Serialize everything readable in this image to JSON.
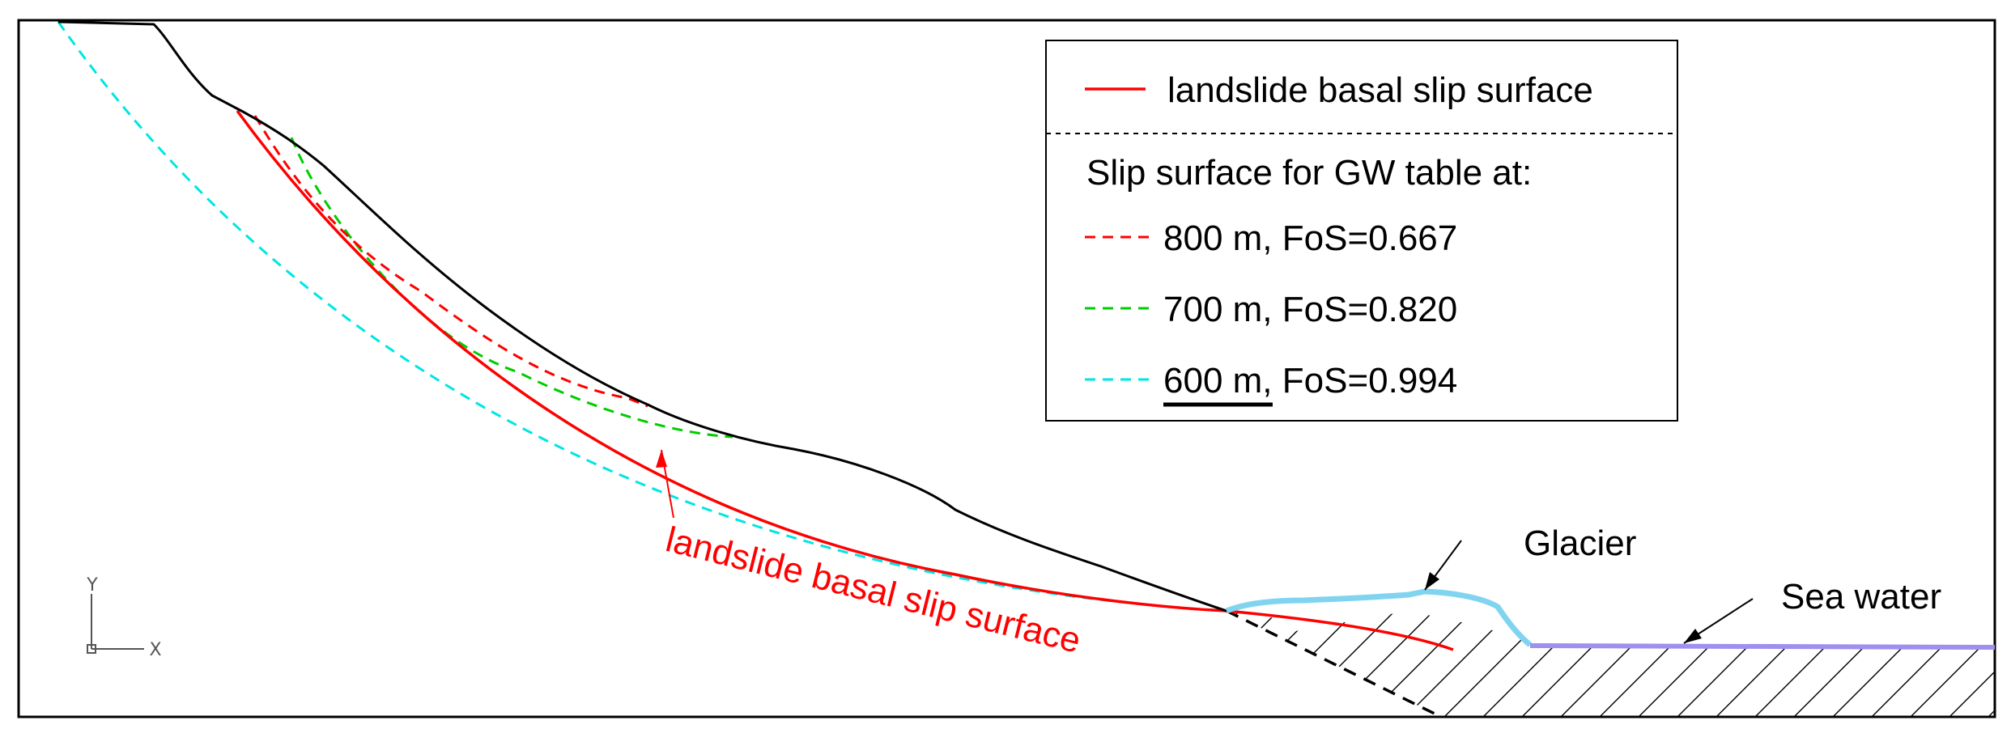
{
  "legend": {
    "main_entry": "landslide basal slip surface",
    "heading": "Slip surface for GW table at:",
    "entries": [
      {
        "depth": "800 m",
        "fos": ", FoS=0.667",
        "color": "#ff0000"
      },
      {
        "depth": "700 m",
        "fos": ", FoS=0.820",
        "color": "#00cc00"
      },
      {
        "depth": "600 m",
        "fos": ", FoS=0.994",
        "color": "#00e5e5"
      }
    ]
  },
  "labels": {
    "slip_surface": "landslide basal slip surface",
    "glacier": "Glacier",
    "sea_water": "Sea water"
  },
  "ucs_icon": {
    "y": "Y",
    "x": "X"
  },
  "colors": {
    "basal_slip": "#ff0000",
    "gw_800": "#ff0000",
    "gw_700": "#00cc00",
    "gw_600": "#00e5e5",
    "glacier": "#80d4f0",
    "sea": "#9f8fef",
    "terrain": "#000000"
  }
}
